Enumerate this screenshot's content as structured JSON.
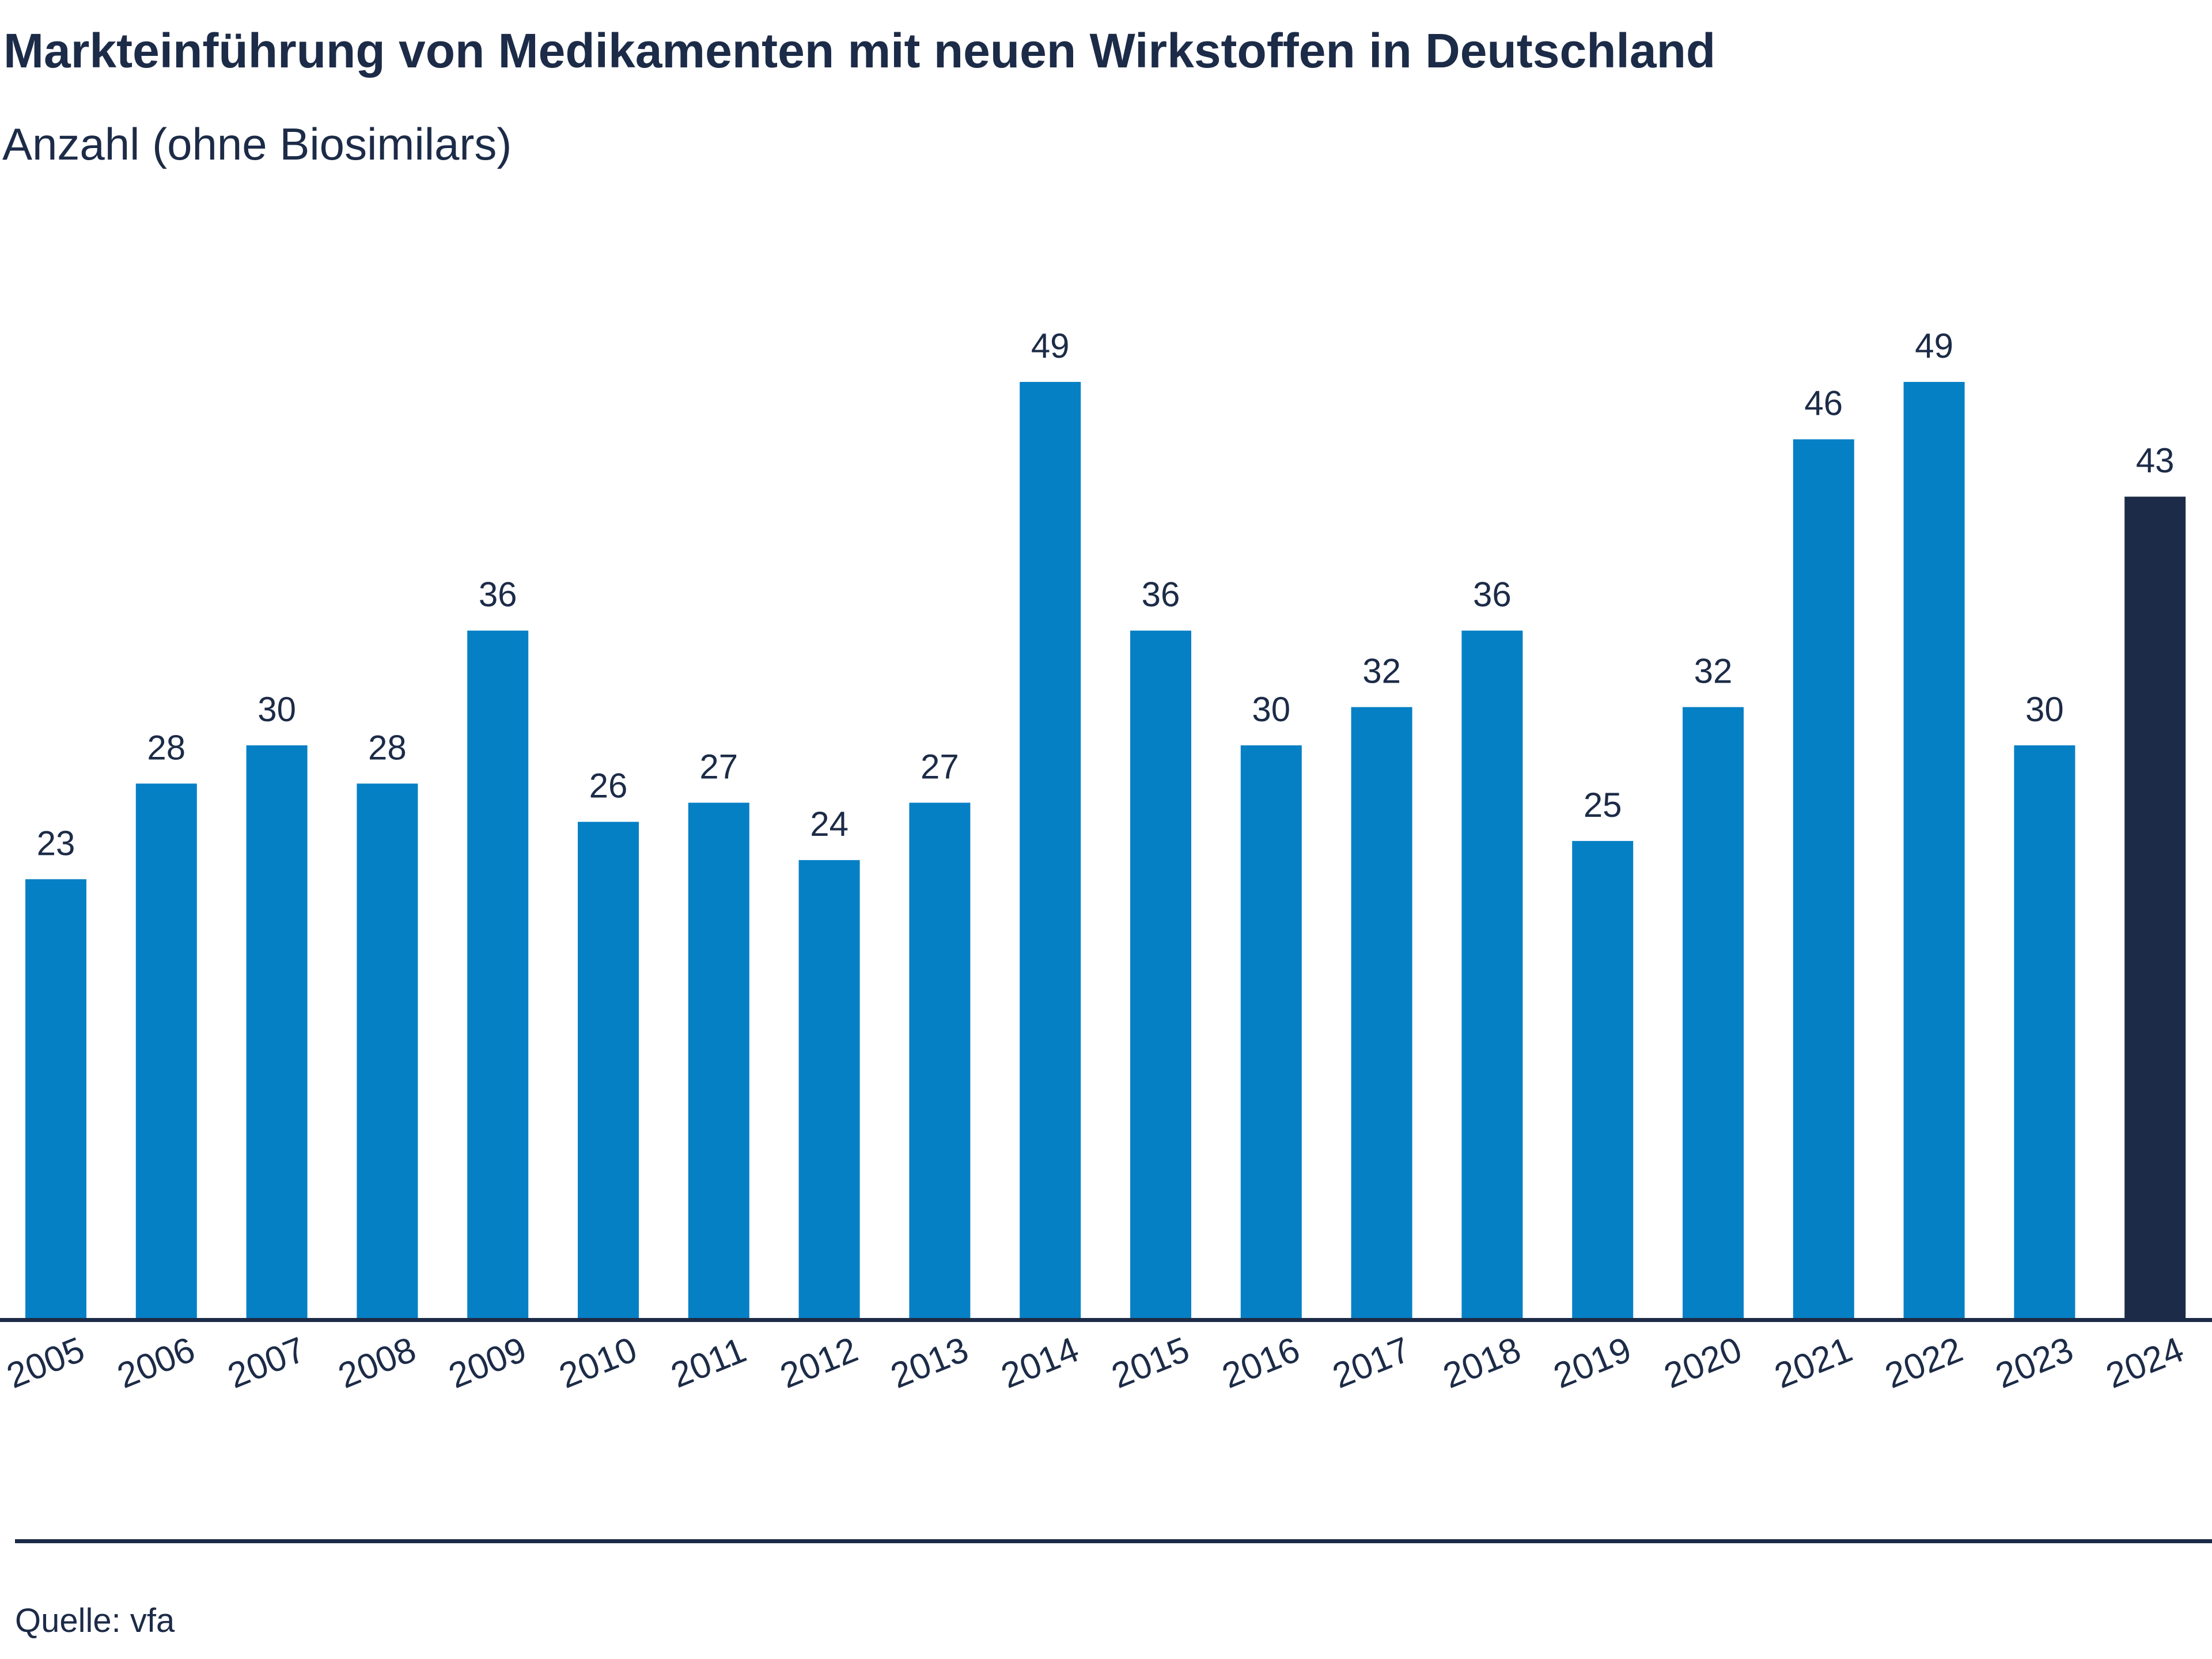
{
  "title": "Markteinführung von Medikamenten mit neuen Wirkstoffen in Deutschland",
  "subtitle": "Anzahl (ohne Biosimilars)",
  "source": "Quelle: vfa",
  "colors": {
    "bar": "#0680c5",
    "bar_highlight": "#1c2b47",
    "text": "#1c2b47",
    "axis": "#1c2b47"
  },
  "chart_data": {
    "type": "bar",
    "title": "Markteinführung von Medikamenten mit neuen Wirkstoffen in Deutschland",
    "subtitle": "Anzahl (ohne Biosimilars)",
    "categories": [
      "2005",
      "2006",
      "2007",
      "2008",
      "2009",
      "2010",
      "2011",
      "2012",
      "2013",
      "2014",
      "2015",
      "2016",
      "2017",
      "2018",
      "2019",
      "2020",
      "2021",
      "2022",
      "2023",
      "2024"
    ],
    "values": [
      23,
      28,
      30,
      28,
      36,
      26,
      27,
      24,
      27,
      49,
      36,
      30,
      32,
      36,
      25,
      32,
      46,
      49,
      30,
      43
    ],
    "highlight_category": "2024",
    "xlabel": "",
    "ylabel": "",
    "ylim": [
      0,
      49
    ],
    "grid": false,
    "legend": "none",
    "data_labels": true,
    "tick_label_rotation": "angled"
  }
}
